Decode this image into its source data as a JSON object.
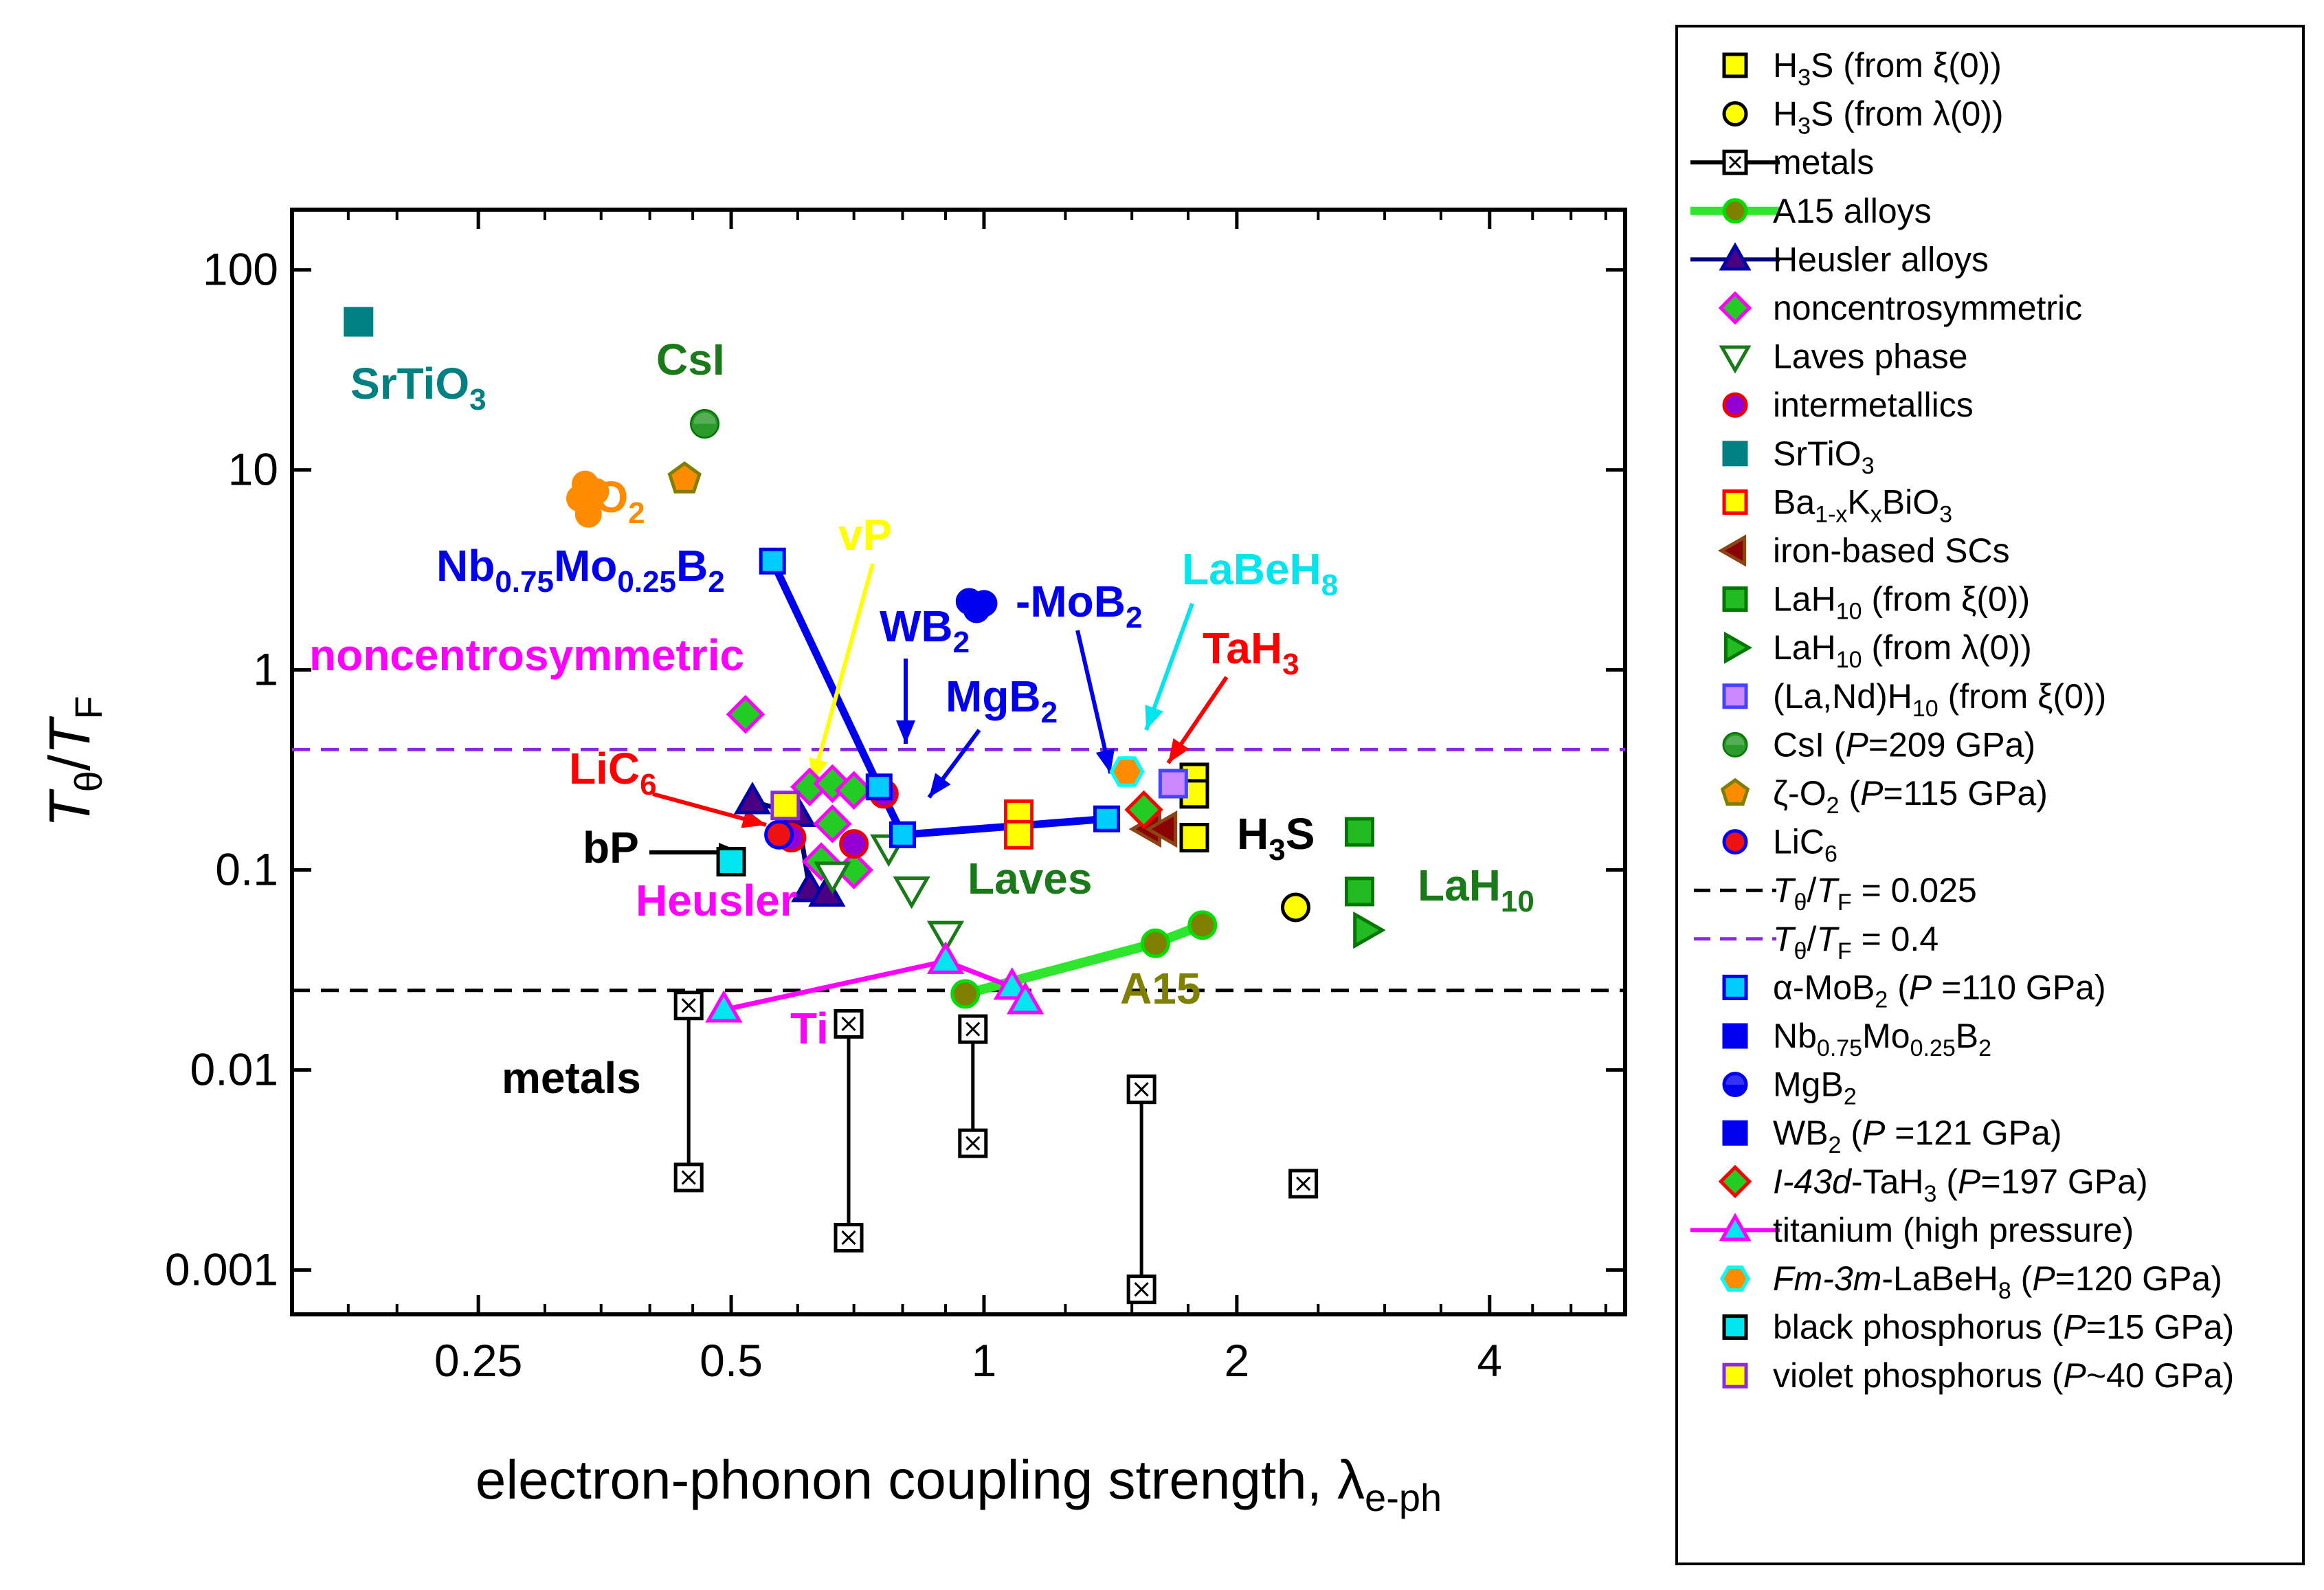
{
  "chart_data": {
    "type": "scatter",
    "xscale": "log2",
    "yscale": "log10",
    "xlim": [
      0.15,
      5.8
    ],
    "ylim": [
      0.0006,
      200
    ],
    "xlabel": "electron-phonon coupling strength, λe-ph",
    "ylabel": "Tθ/TF",
    "xticks": [
      {
        "v": 0.25,
        "label": "0.25"
      },
      {
        "v": 0.5,
        "label": "0.5"
      },
      {
        "v": 1,
        "label": "1"
      },
      {
        "v": 2,
        "label": "2"
      },
      {
        "v": 4,
        "label": "4"
      }
    ],
    "yticks": [
      {
        "v": 100,
        "label": "100"
      },
      {
        "v": 10,
        "label": "10"
      },
      {
        "v": 1,
        "label": "1"
      },
      {
        "v": 0.1,
        "label": "0.1"
      },
      {
        "v": 0.01,
        "label": "0.01"
      },
      {
        "v": 0.001,
        "label": "0.001"
      }
    ],
    "hlines": [
      {
        "name": "Tθ/TF = 0.025",
        "y": 0.025,
        "color": "#000000"
      },
      {
        "name": "Tθ/TF = 0.4",
        "y": 0.4,
        "color": "#8a2be2"
      }
    ],
    "series": [
      {
        "name": "H3S (from ξ(0))",
        "marker": "square",
        "fill": "#ffff00",
        "stroke": "#000000",
        "points": [
          [
            1.78,
            0.29
          ],
          [
            1.78,
            0.24
          ],
          [
            1.78,
            0.145
          ]
        ]
      },
      {
        "name": "H3S (from λ(0))",
        "marker": "circle",
        "fill": "#ffff00",
        "stroke": "#000000",
        "points": [
          [
            2.35,
            0.065
          ]
        ]
      },
      {
        "name": "metals",
        "marker": "xsquare",
        "fill": "#ffffff",
        "stroke": "#000000",
        "line": "#000000",
        "segments": true,
        "points": [
          [
            0.445,
            0.021
          ],
          [
            0.445,
            0.0029
          ],
          [
            0.69,
            0.017
          ],
          [
            0.69,
            0.00145
          ],
          [
            0.97,
            0.016
          ],
          [
            0.97,
            0.0043
          ],
          [
            1.54,
            0.008
          ],
          [
            1.54,
            0.0008
          ],
          [
            2.4,
            0.0027
          ]
        ]
      },
      {
        "name": "A15 alloys",
        "marker": "circle",
        "fill": "#808000",
        "stroke": "#00dd00",
        "line": "#2ee62e",
        "points": [
          [
            0.95,
            0.024
          ],
          [
            1.6,
            0.043
          ],
          [
            1.82,
            0.053
          ]
        ]
      },
      {
        "name": "Heusler alloys",
        "marker": "triangle",
        "fill": "#4b0082",
        "stroke": "#0000aa",
        "line": "#000080",
        "points": [
          [
            0.53,
            0.22
          ],
          [
            0.6,
            0.19
          ],
          [
            0.62,
            0.08
          ],
          [
            0.65,
            0.076
          ]
        ]
      },
      {
        "name": "noncentrosymmetric",
        "marker": "diamond",
        "fill": "#22cc22",
        "stroke": "#ff00ff",
        "points": [
          [
            0.52,
            0.6
          ],
          [
            0.62,
            0.26
          ],
          [
            0.66,
            0.27
          ],
          [
            0.7,
            0.25
          ],
          [
            0.66,
            0.17
          ],
          [
            0.64,
            0.11
          ],
          [
            0.7,
            0.1
          ]
        ]
      },
      {
        "name": "Laves phase",
        "marker": "invtriangle",
        "fill": "none",
        "stroke": "#1a7a1a",
        "points": [
          [
            0.66,
            0.095
          ],
          [
            0.77,
            0.13
          ],
          [
            0.82,
            0.08
          ],
          [
            0.9,
            0.048
          ]
        ]
      },
      {
        "name": "intermetallics",
        "marker": "circle",
        "fill": "#9400d3",
        "stroke": "#ee0000",
        "points": [
          [
            0.59,
            0.145
          ],
          [
            0.7,
            0.135
          ],
          [
            0.76,
            0.24
          ]
        ]
      },
      {
        "name": "SrTiO3",
        "marker": "square",
        "fill": "#008080",
        "stroke": "#008080",
        "points": [
          [
            0.18,
            55
          ]
        ]
      },
      {
        "name": "Ba1-xKxBiO3",
        "marker": "square",
        "fill": "#ffff00",
        "stroke": "#ff0000",
        "points": [
          [
            1.1,
            0.19
          ],
          [
            1.1,
            0.15
          ]
        ]
      },
      {
        "name": "iron-based SCs",
        "marker": "lefttriangle",
        "fill": "#8b0000",
        "stroke": "#8b4513",
        "points": [
          [
            1.57,
            0.16
          ],
          [
            1.64,
            0.16
          ]
        ]
      },
      {
        "name": "LaH10 (from ξ(0))",
        "marker": "square",
        "fill": "#22bb22",
        "stroke": "#007700",
        "points": [
          [
            2.8,
            0.155
          ],
          [
            2.8,
            0.078
          ]
        ]
      },
      {
        "name": "LaH10 (from λ(0))",
        "marker": "righttriangle",
        "fill": "#22bb22",
        "stroke": "#007700",
        "points": [
          [
            2.85,
            0.05
          ]
        ]
      },
      {
        "name": "(La,Nd)H10 (from ξ(0))",
        "marker": "square",
        "fill": "#cc88ff",
        "stroke": "#4444ff",
        "points": [
          [
            1.68,
            0.27
          ]
        ]
      },
      {
        "name": "CsI (P=209 GPa)",
        "marker": "halfcircle",
        "fill": "#2a9a2a",
        "stroke": "#007700",
        "points": [
          [
            0.465,
            17
          ]
        ]
      },
      {
        "name": "ζ-O2 (P=115 GPa)",
        "marker": "pentagon",
        "fill": "#ff8c00",
        "stroke": "#808000",
        "points": [
          [
            0.44,
            9
          ]
        ]
      },
      {
        "name": "O2 cluster",
        "marker": "blob",
        "fill": "#ff8c00",
        "stroke": "#ff8c00",
        "points": [
          [
            0.335,
            8.5
          ],
          [
            0.33,
            7.2
          ],
          [
            0.338,
            6.0
          ],
          [
            0.345,
            7.8
          ]
        ]
      },
      {
        "name": "LiC6",
        "marker": "circle",
        "fill": "#ee1111",
        "stroke": "#0000ff",
        "points": [
          [
            0.57,
            0.15
          ]
        ]
      },
      {
        "name": "MgB2 / MoB2 / WB2 / Nb0.75Mo0.25B2",
        "marker": "square",
        "fill": "#00ccff",
        "stroke": "#0000ee",
        "line": "#0000ee",
        "points": [
          [
            0.56,
            3.5
          ],
          [
            0.75,
            0.26
          ],
          [
            0.8,
            0.15
          ],
          [
            1.4,
            0.18
          ]
        ]
      },
      {
        "name": "MoB2 cluster",
        "marker": "blob",
        "fill": "#0000ee",
        "stroke": "#0000ee",
        "points": [
          [
            0.96,
            2.2
          ],
          [
            0.98,
            2.0
          ],
          [
            1.0,
            2.15
          ]
        ]
      },
      {
        "name": "I-43d-TaH3 (P=197 GPa)",
        "marker": "diamond",
        "fill": "#22cc22",
        "stroke": "#ff0000",
        "points": [
          [
            1.55,
            0.2
          ]
        ]
      },
      {
        "name": "titanium (high pressure)",
        "marker": "triangle",
        "fill": "#00e5ee",
        "stroke": "#ff00ff",
        "line": "#ff00ff",
        "points": [
          [
            0.49,
            0.02
          ],
          [
            0.9,
            0.035
          ],
          [
            1.08,
            0.026
          ],
          [
            1.12,
            0.022
          ]
        ]
      },
      {
        "name": "Fm-3m-LaBeH8 (P=120 GPa)",
        "marker": "hexagon",
        "fill": "#ff8c00",
        "stroke": "#00ffff",
        "points": [
          [
            1.48,
            0.31
          ]
        ]
      },
      {
        "name": "black phosphorus (P=15 GPa)",
        "marker": "square",
        "fill": "#00e5ee",
        "stroke": "#000000",
        "points": [
          [
            0.5,
            0.11
          ]
        ]
      },
      {
        "name": "violet phosphorus (P~40 GPa)",
        "marker": "square",
        "fill": "#ffff00",
        "stroke": "#8a2be2",
        "points": [
          [
            0.58,
            0.21
          ]
        ]
      }
    ],
    "annotations": [
      {
        "text": "SrTiO3",
        "color": "#008080"
      },
      {
        "text": "CsI",
        "color": "#1a7a1a"
      },
      {
        "text": "-O2",
        "color": "#ff8c00"
      },
      {
        "text": "Nb0.75Mo0.25B2",
        "color": "#0000ee"
      },
      {
        "text": "vP",
        "color": "#ffff00"
      },
      {
        "text": "-MoB2",
        "color": "#0000ee"
      },
      {
        "text": "LaBeH8",
        "color": "#00e5ee"
      },
      {
        "text": "TaH3",
        "color": "#ff0000"
      },
      {
        "text": "WB2",
        "color": "#0000ee"
      },
      {
        "text": "MgB2",
        "color": "#0000ee"
      },
      {
        "text": "noncentrosymmetric",
        "color": "#ff00ff"
      },
      {
        "text": "LiC6",
        "color": "#ff0000"
      },
      {
        "text": "bP",
        "color": "#000000"
      },
      {
        "text": "Heusler",
        "color": "#ff00ff"
      },
      {
        "text": "Laves",
        "color": "#1a7a1a"
      },
      {
        "text": "H3S",
        "color": "#000000"
      },
      {
        "text": "LaH10",
        "color": "#1a7a1a"
      },
      {
        "text": "A15",
        "color": "#808000"
      },
      {
        "text": "Ti",
        "color": "#ff00ff"
      },
      {
        "text": "metals",
        "color": "#000000"
      }
    ]
  },
  "legend": [
    {
      "label": "H3S (from ξ(0))"
    },
    {
      "label": "H3S (from λ(0))"
    },
    {
      "label": "metals"
    },
    {
      "label": "A15 alloys"
    },
    {
      "label": "Heusler alloys"
    },
    {
      "label": "noncentrosymmetric"
    },
    {
      "label": "Laves phase"
    },
    {
      "label": "intermetallics"
    },
    {
      "label": "SrTiO3"
    },
    {
      "label": "Ba1-xKxBiO3"
    },
    {
      "label": "iron-based SCs"
    },
    {
      "label": "LaH10 (from ξ(0))"
    },
    {
      "label": "LaH10 (from λ(0))"
    },
    {
      "label": "(La,Nd)H10 (from ξ(0))"
    },
    {
      "label": "CsI (P=209 GPa)"
    },
    {
      "label": "ζ-O2 (P=115 GPa)"
    },
    {
      "label": "LiC6"
    },
    {
      "label": "Tθ/TF = 0.025"
    },
    {
      "label": "Tθ/TF = 0.4"
    },
    {
      "label": "α-MoB2 (P =110 GPa)"
    },
    {
      "label": "Nb0.75Mo0.25B2"
    },
    {
      "label": "MgB2"
    },
    {
      "label": "WB2 (P =121 GPa)"
    },
    {
      "label": "I-43d-TaH3 (P=197 GPa)"
    },
    {
      "label": "titanium (high pressure)"
    },
    {
      "label": "Fm-3m-LaBeH8 (P=120 GPa)"
    },
    {
      "label": "black phosphorus (P=15 GPa)"
    },
    {
      "label": "violet phosphorus (P~40 GPa)"
    }
  ]
}
